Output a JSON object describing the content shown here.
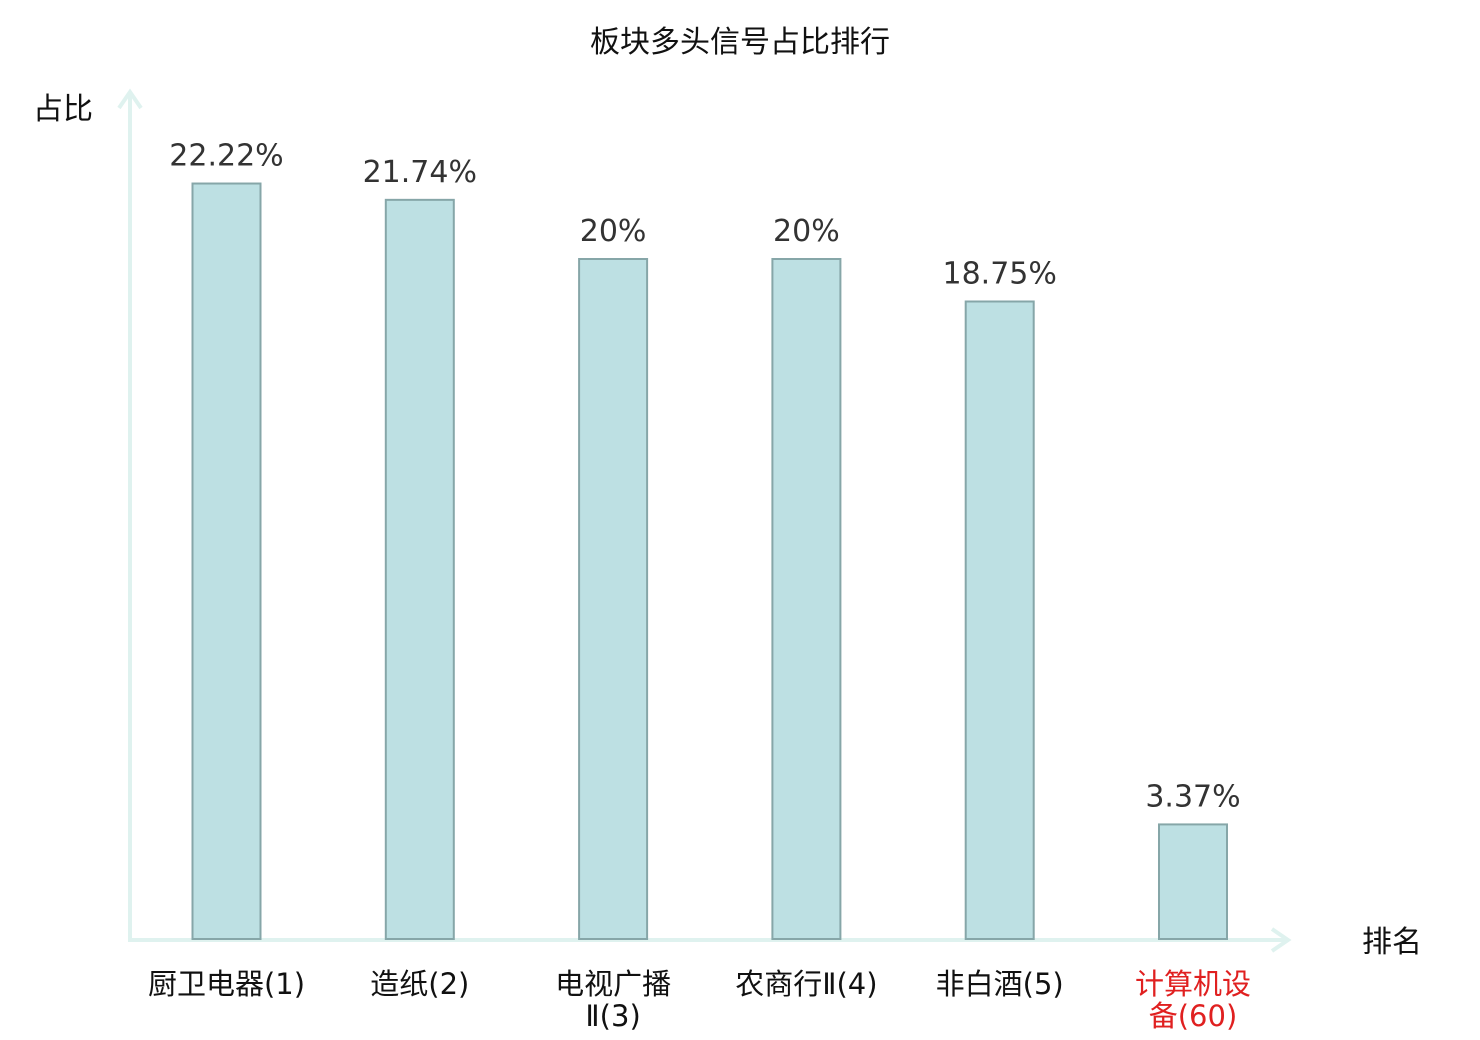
{
  "chart_data": {
    "type": "bar",
    "title": "板块多头信号占比排行",
    "xlabel": "排名",
    "ylabel": "占比",
    "categories": [
      {
        "name": "厨卫电器",
        "rank": "(1)",
        "lines": [
          "厨卫电器(1)"
        ],
        "highlight": false
      },
      {
        "name": "造纸",
        "rank": "(2)",
        "lines": [
          "造纸(2)"
        ],
        "highlight": false
      },
      {
        "name": "电视广播Ⅱ",
        "rank": "(3)",
        "lines": [
          "电视广播",
          "Ⅱ(3)"
        ],
        "highlight": false
      },
      {
        "name": "农商行Ⅱ",
        "rank": "(4)",
        "lines": [
          "农商行Ⅱ(4)"
        ],
        "highlight": false
      },
      {
        "name": "非白酒",
        "rank": "(5)",
        "lines": [
          "非白酒(5)"
        ],
        "highlight": false
      },
      {
        "name": "计算机设备",
        "rank": "(60)",
        "lines": [
          "计算机设",
          "备(60)"
        ],
        "highlight": true
      }
    ],
    "values": [
      22.22,
      21.74,
      20,
      20,
      18.75,
      3.37
    ],
    "value_labels": [
      "22.22%",
      "21.74%",
      "20%",
      "20%",
      "18.75%",
      "3.37%"
    ],
    "unit": "%",
    "ylim": [
      0,
      25
    ],
    "grid": false,
    "colors": {
      "bar_fill": "#bde0e3",
      "bar_stroke": "#86a6a8",
      "axis": "#dff2ef",
      "highlight_text": "#e02020",
      "text": "#111111",
      "value_text": "#333333"
    }
  }
}
